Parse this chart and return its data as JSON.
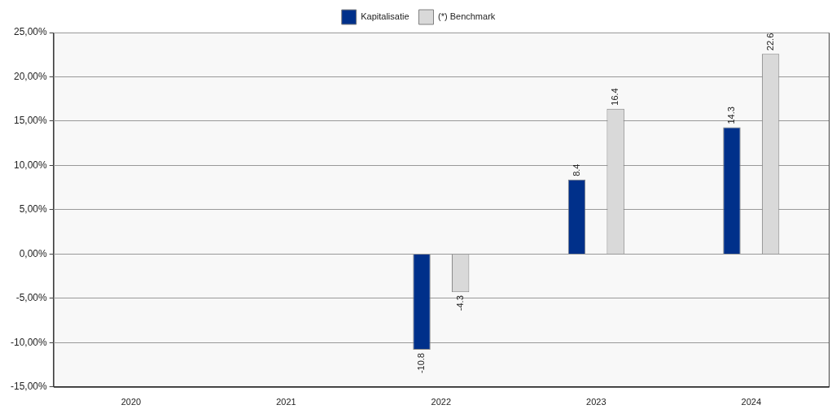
{
  "chart_data": {
    "type": "bar",
    "categories": [
      "2020",
      "2021",
      "2022",
      "2023",
      "2024"
    ],
    "series": [
      {
        "name": "Kapitalisatie",
        "color": "#00308a",
        "values": [
          null,
          null,
          -10.8,
          8.4,
          14.3
        ],
        "value_labels": [
          null,
          null,
          "-10.8",
          "8.4",
          "14.3"
        ]
      },
      {
        "name": "(*) Benchmark",
        "color": "#d9d9d9",
        "values": [
          null,
          null,
          -4.3,
          16.4,
          22.6
        ],
        "value_labels": [
          null,
          null,
          "-4.3",
          "16.4",
          "22.6"
        ]
      }
    ],
    "ylim": [
      -15,
      25
    ],
    "yticks": [
      {
        "value": -15,
        "label": "-15,00%"
      },
      {
        "value": -10,
        "label": "-10,00%"
      },
      {
        "value": -5,
        "label": "-5,00%"
      },
      {
        "value": 0,
        "label": "0,00%"
      },
      {
        "value": 5,
        "label": "5,00%"
      },
      {
        "value": 10,
        "label": "10,00%"
      },
      {
        "value": 15,
        "label": "15,00%"
      },
      {
        "value": 20,
        "label": "20,00%"
      },
      {
        "value": 25,
        "label": "25,00%"
      }
    ],
    "grid": "y",
    "legend": "top"
  }
}
